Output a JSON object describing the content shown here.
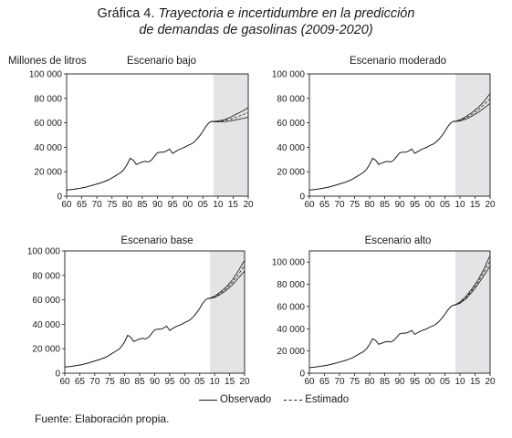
{
  "figure": {
    "title_prefix": "Gráfica 4.",
    "title_line1": "Trayectoria e incertidumbre en la predicción",
    "title_line2": "de demandas de gasolinas (2009-2020)",
    "y_unit": "Millones de litros",
    "source": "Fuente: Elaboración propia."
  },
  "legend": {
    "observed": "Observado",
    "estimated": "Estimado"
  },
  "chart_data": [
    {
      "type": "line",
      "title": "Escenario bajo",
      "xlabel": "",
      "ylabel": "Millones de litros",
      "xlim": [
        1960,
        2020
      ],
      "ylim": [
        0,
        100000
      ],
      "x_ticks": [
        "60",
        "65",
        "70",
        "75",
        "80",
        "85",
        "90",
        "95",
        "00",
        "05",
        "10",
        "15",
        "20"
      ],
      "y_ticks": [
        "0",
        "20 000",
        "40 000",
        "60 000",
        "80 000",
        "100 000"
      ],
      "forecast_start": 2008.5,
      "observed": {
        "x": [
          1960,
          1962,
          1964,
          1966,
          1968,
          1970,
          1972,
          1974,
          1976,
          1978,
          1979,
          1980,
          1981,
          1982,
          1983,
          1984,
          1985,
          1986,
          1987,
          1988,
          1989,
          1990,
          1991,
          1992,
          1993,
          1994,
          1995,
          1996,
          1997,
          1998,
          1999,
          2000,
          2001,
          2002,
          2003,
          2004,
          2005,
          2006,
          2007,
          2008
        ],
        "y": [
          5000,
          5500,
          6300,
          7200,
          8500,
          10000,
          11500,
          13500,
          16500,
          19500,
          22000,
          26000,
          31000,
          29500,
          26000,
          27000,
          28000,
          28500,
          28000,
          29500,
          32500,
          35500,
          36000,
          36000,
          37000,
          38500,
          35000,
          36500,
          38000,
          39000,
          40000,
          41500,
          42500,
          44000,
          46500,
          49500,
          53000,
          57000,
          60000,
          61500
        ]
      },
      "estimated": [
        {
          "x": [
            2008,
            2010,
            2012,
            2014,
            2016,
            2018,
            2020
          ],
          "y": [
            61000,
            61500,
            62500,
            64500,
            67000,
            69500,
            72500
          ]
        },
        {
          "x": [
            2008,
            2010,
            2012,
            2014,
            2016,
            2018,
            2020
          ],
          "y": [
            61000,
            61000,
            61800,
            63000,
            64500,
            66500,
            68500
          ]
        },
        {
          "x": [
            2008,
            2010,
            2012,
            2014,
            2016,
            2018,
            2020
          ],
          "y": [
            61000,
            60800,
            61000,
            61500,
            62500,
            63500,
            64500
          ]
        }
      ]
    },
    {
      "type": "line",
      "title": "Escenario moderado",
      "xlabel": "",
      "ylabel": "",
      "xlim": [
        1960,
        2020
      ],
      "ylim": [
        0,
        100000
      ],
      "x_ticks": [
        "60",
        "65",
        "70",
        "75",
        "80",
        "85",
        "90",
        "95",
        "00",
        "05",
        "10",
        "15",
        "20"
      ],
      "y_ticks": [
        "0",
        "20 000",
        "40 000",
        "60 000",
        "80 000",
        "100 000"
      ],
      "forecast_start": 2008.5,
      "observed": {
        "x": [
          1960,
          1962,
          1964,
          1966,
          1968,
          1970,
          1972,
          1974,
          1976,
          1978,
          1979,
          1980,
          1981,
          1982,
          1983,
          1984,
          1985,
          1986,
          1987,
          1988,
          1989,
          1990,
          1991,
          1992,
          1993,
          1994,
          1995,
          1996,
          1997,
          1998,
          1999,
          2000,
          2001,
          2002,
          2003,
          2004,
          2005,
          2006,
          2007,
          2008
        ],
        "y": [
          5000,
          5500,
          6300,
          7200,
          8500,
          10000,
          11500,
          13500,
          16500,
          19500,
          22000,
          26000,
          31000,
          29500,
          26000,
          27000,
          28000,
          28500,
          28000,
          29500,
          32500,
          35500,
          36000,
          36000,
          37000,
          38500,
          35000,
          36500,
          38000,
          39000,
          40000,
          41500,
          42500,
          44000,
          46500,
          49500,
          53000,
          57000,
          60000,
          61500
        ]
      },
      "estimated": [
        {
          "x": [
            2008,
            2010,
            2012,
            2014,
            2016,
            2018,
            2020
          ],
          "y": [
            61000,
            62500,
            65000,
            68500,
            72500,
            77500,
            84000
          ]
        },
        {
          "x": [
            2008,
            2010,
            2012,
            2014,
            2016,
            2018,
            2020
          ],
          "y": [
            61000,
            62000,
            64000,
            67000,
            70500,
            75000,
            79500
          ]
        },
        {
          "x": [
            2008,
            2010,
            2012,
            2014,
            2016,
            2018,
            2020
          ],
          "y": [
            61000,
            61500,
            63000,
            65500,
            68500,
            72000,
            76000
          ]
        }
      ]
    },
    {
      "type": "line",
      "title": "Escenario base",
      "xlabel": "",
      "ylabel": "",
      "xlim": [
        1960,
        2020
      ],
      "ylim": [
        0,
        100000
      ],
      "x_ticks": [
        "60",
        "65",
        "70",
        "75",
        "80",
        "85",
        "90",
        "95",
        "00",
        "05",
        "10",
        "15",
        "20"
      ],
      "y_ticks": [
        "0",
        "20 000",
        "40 000",
        "60 000",
        "80 000",
        "100 000"
      ],
      "forecast_start": 2008.5,
      "observed": {
        "x": [
          1960,
          1962,
          1964,
          1966,
          1968,
          1970,
          1972,
          1974,
          1976,
          1978,
          1979,
          1980,
          1981,
          1982,
          1983,
          1984,
          1985,
          1986,
          1987,
          1988,
          1989,
          1990,
          1991,
          1992,
          1993,
          1994,
          1995,
          1996,
          1997,
          1998,
          1999,
          2000,
          2001,
          2002,
          2003,
          2004,
          2005,
          2006,
          2007,
          2008
        ],
        "y": [
          5000,
          5500,
          6300,
          7200,
          8500,
          10000,
          11500,
          13500,
          16500,
          19500,
          22000,
          26000,
          31000,
          29500,
          26000,
          27000,
          28000,
          28500,
          28000,
          29500,
          32500,
          35500,
          36000,
          36000,
          37000,
          38500,
          35000,
          36500,
          38000,
          39000,
          40000,
          41500,
          42500,
          44000,
          46500,
          49500,
          53000,
          57000,
          60000,
          61500
        ]
      },
      "estimated": [
        {
          "x": [
            2008,
            2010,
            2012,
            2014,
            2016,
            2018,
            2020
          ],
          "y": [
            61000,
            63000,
            66500,
            71000,
            76500,
            84000,
            92500
          ]
        },
        {
          "x": [
            2008,
            2010,
            2012,
            2014,
            2016,
            2018,
            2020
          ],
          "y": [
            61000,
            62500,
            65500,
            69500,
            74500,
            81000,
            88000
          ]
        },
        {
          "x": [
            2008,
            2010,
            2012,
            2014,
            2016,
            2018,
            2020
          ],
          "y": [
            61000,
            62000,
            64500,
            68000,
            72500,
            78000,
            83500
          ]
        }
      ]
    },
    {
      "type": "line",
      "title": "Escenario alto",
      "xlabel": "",
      "ylabel": "",
      "xlim": [
        1960,
        2020
      ],
      "ylim": [
        0,
        110000
      ],
      "x_ticks": [
        "60",
        "65",
        "70",
        "75",
        "80",
        "85",
        "90",
        "95",
        "00",
        "05",
        "10",
        "15",
        "20"
      ],
      "y_ticks": [
        "0",
        "20 000",
        "40 000",
        "60 000",
        "80 000",
        "100 000"
      ],
      "forecast_start": 2008.5,
      "observed": {
        "x": [
          1960,
          1962,
          1964,
          1966,
          1968,
          1970,
          1972,
          1974,
          1976,
          1978,
          1979,
          1980,
          1981,
          1982,
          1983,
          1984,
          1985,
          1986,
          1987,
          1988,
          1989,
          1990,
          1991,
          1992,
          1993,
          1994,
          1995,
          1996,
          1997,
          1998,
          1999,
          2000,
          2001,
          2002,
          2003,
          2004,
          2005,
          2006,
          2007,
          2008
        ],
        "y": [
          5000,
          5500,
          6300,
          7200,
          8500,
          10000,
          11500,
          13500,
          16500,
          19500,
          22000,
          26000,
          31000,
          29500,
          26000,
          27000,
          28000,
          28500,
          28000,
          29500,
          32500,
          35500,
          36000,
          36000,
          37000,
          38500,
          35000,
          36500,
          38000,
          39000,
          40000,
          41500,
          42500,
          44000,
          46500,
          49500,
          53000,
          57000,
          60000,
          61500
        ]
      },
      "estimated": [
        {
          "x": [
            2008,
            2010,
            2012,
            2014,
            2016,
            2018,
            2020
          ],
          "y": [
            61000,
            64000,
            69000,
            76000,
            84000,
            94000,
            106000
          ]
        },
        {
          "x": [
            2008,
            2010,
            2012,
            2014,
            2016,
            2018,
            2020
          ],
          "y": [
            61000,
            63500,
            68000,
            74500,
            82000,
            91000,
            101000
          ]
        },
        {
          "x": [
            2008,
            2010,
            2012,
            2014,
            2016,
            2018,
            2020
          ],
          "y": [
            61000,
            63000,
            67000,
            73000,
            80000,
            88000,
            96500
          ]
        }
      ]
    }
  ]
}
